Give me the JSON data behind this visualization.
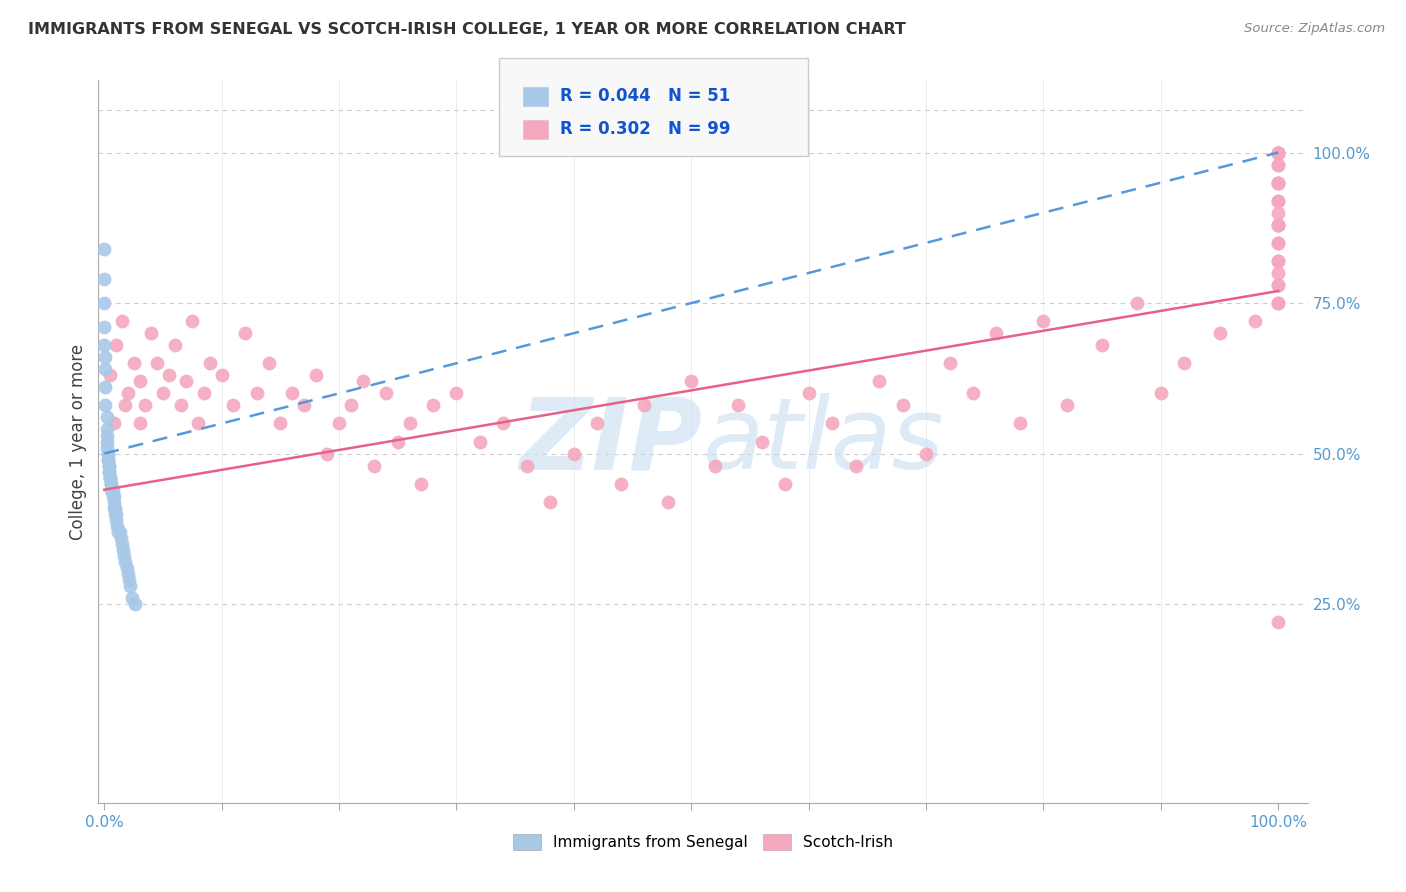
{
  "title": "IMMIGRANTS FROM SENEGAL VS SCOTCH-IRISH COLLEGE, 1 YEAR OR MORE CORRELATION CHART",
  "source": "Source: ZipAtlas.com",
  "ylabel": "College, 1 year or more",
  "xtick_labels": [
    "0.0%",
    "",
    "",
    "",
    "",
    "",
    "",
    "",
    "",
    "100.0%"
  ],
  "xtick_major_labels": [
    "0.0%",
    "100.0%"
  ],
  "xtick_major_vals": [
    0.0,
    1.0
  ],
  "ytick_labels": [
    "25.0%",
    "50.0%",
    "75.0%",
    "100.0%"
  ],
  "ytick_vals": [
    0.25,
    0.5,
    0.75,
    1.0
  ],
  "senegal_color": "#a8c8e8",
  "scotch_color": "#f4a8be",
  "senegal_line_color": "#5599dd",
  "scotch_line_color": "#e8608a",
  "watermark_color": "#c8dff0",
  "legend_box_color": "#eeeeee",
  "R_senegal": 0.044,
  "N_senegal": 51,
  "R_scotch": 0.302,
  "N_scotch": 99,
  "sen_line_y0": 0.5,
  "sen_line_y1": 1.0,
  "sco_line_y0": 0.44,
  "sco_line_y1": 0.77,
  "senegal_x": [
    0.0,
    0.0,
    0.0,
    0.0,
    0.0,
    0.001,
    0.001,
    0.001,
    0.001,
    0.002,
    0.002,
    0.002,
    0.002,
    0.002,
    0.003,
    0.003,
    0.003,
    0.003,
    0.004,
    0.004,
    0.004,
    0.004,
    0.005,
    0.005,
    0.005,
    0.006,
    0.006,
    0.006,
    0.007,
    0.007,
    0.008,
    0.008,
    0.008,
    0.009,
    0.009,
    0.01,
    0.01,
    0.011,
    0.012,
    0.013,
    0.014,
    0.015,
    0.016,
    0.017,
    0.018,
    0.019,
    0.02,
    0.021,
    0.022,
    0.024,
    0.026
  ],
  "senegal_y": [
    0.84,
    0.79,
    0.75,
    0.71,
    0.68,
    0.66,
    0.64,
    0.61,
    0.58,
    0.56,
    0.54,
    0.53,
    0.52,
    0.51,
    0.5,
    0.5,
    0.49,
    0.49,
    0.48,
    0.48,
    0.47,
    0.47,
    0.46,
    0.46,
    0.46,
    0.45,
    0.45,
    0.44,
    0.44,
    0.43,
    0.43,
    0.42,
    0.41,
    0.41,
    0.4,
    0.4,
    0.39,
    0.38,
    0.37,
    0.37,
    0.36,
    0.35,
    0.34,
    0.33,
    0.32,
    0.31,
    0.3,
    0.29,
    0.28,
    0.26,
    0.25
  ],
  "scotch_x": [
    0.005,
    0.008,
    0.01,
    0.015,
    0.018,
    0.02,
    0.025,
    0.03,
    0.03,
    0.035,
    0.04,
    0.045,
    0.05,
    0.055,
    0.06,
    0.065,
    0.07,
    0.075,
    0.08,
    0.085,
    0.09,
    0.1,
    0.11,
    0.12,
    0.13,
    0.14,
    0.15,
    0.16,
    0.17,
    0.18,
    0.19,
    0.2,
    0.21,
    0.22,
    0.23,
    0.24,
    0.25,
    0.26,
    0.27,
    0.28,
    0.3,
    0.32,
    0.34,
    0.36,
    0.38,
    0.4,
    0.42,
    0.44,
    0.46,
    0.48,
    0.5,
    0.52,
    0.54,
    0.56,
    0.58,
    0.6,
    0.62,
    0.64,
    0.66,
    0.68,
    0.7,
    0.72,
    0.74,
    0.76,
    0.78,
    0.8,
    0.82,
    0.85,
    0.88,
    0.9,
    0.92,
    0.95,
    0.98,
    1.0,
    1.0,
    1.0,
    1.0,
    1.0,
    1.0,
    1.0,
    1.0,
    1.0,
    1.0,
    1.0,
    1.0,
    1.0,
    1.0,
    1.0,
    1.0,
    1.0,
    1.0,
    1.0,
    1.0,
    1.0,
    1.0,
    1.0,
    1.0,
    1.0,
    1.0
  ],
  "scotch_y": [
    0.63,
    0.55,
    0.68,
    0.72,
    0.58,
    0.6,
    0.65,
    0.55,
    0.62,
    0.58,
    0.7,
    0.65,
    0.6,
    0.63,
    0.68,
    0.58,
    0.62,
    0.72,
    0.55,
    0.6,
    0.65,
    0.63,
    0.58,
    0.7,
    0.6,
    0.65,
    0.55,
    0.6,
    0.58,
    0.63,
    0.5,
    0.55,
    0.58,
    0.62,
    0.48,
    0.6,
    0.52,
    0.55,
    0.45,
    0.58,
    0.6,
    0.52,
    0.55,
    0.48,
    0.42,
    0.5,
    0.55,
    0.45,
    0.58,
    0.42,
    0.62,
    0.48,
    0.58,
    0.52,
    0.45,
    0.6,
    0.55,
    0.48,
    0.62,
    0.58,
    0.5,
    0.65,
    0.6,
    0.7,
    0.55,
    0.72,
    0.58,
    0.68,
    0.75,
    0.6,
    0.65,
    0.7,
    0.72,
    0.8,
    0.85,
    0.75,
    0.78,
    0.82,
    0.88,
    0.92,
    0.95,
    1.0,
    0.98,
    1.0,
    0.85,
    0.88,
    0.92,
    0.95,
    1.0,
    1.0,
    0.22,
    0.88,
    0.75,
    0.82,
    0.78,
    0.9,
    0.95,
    0.98,
    1.0
  ]
}
